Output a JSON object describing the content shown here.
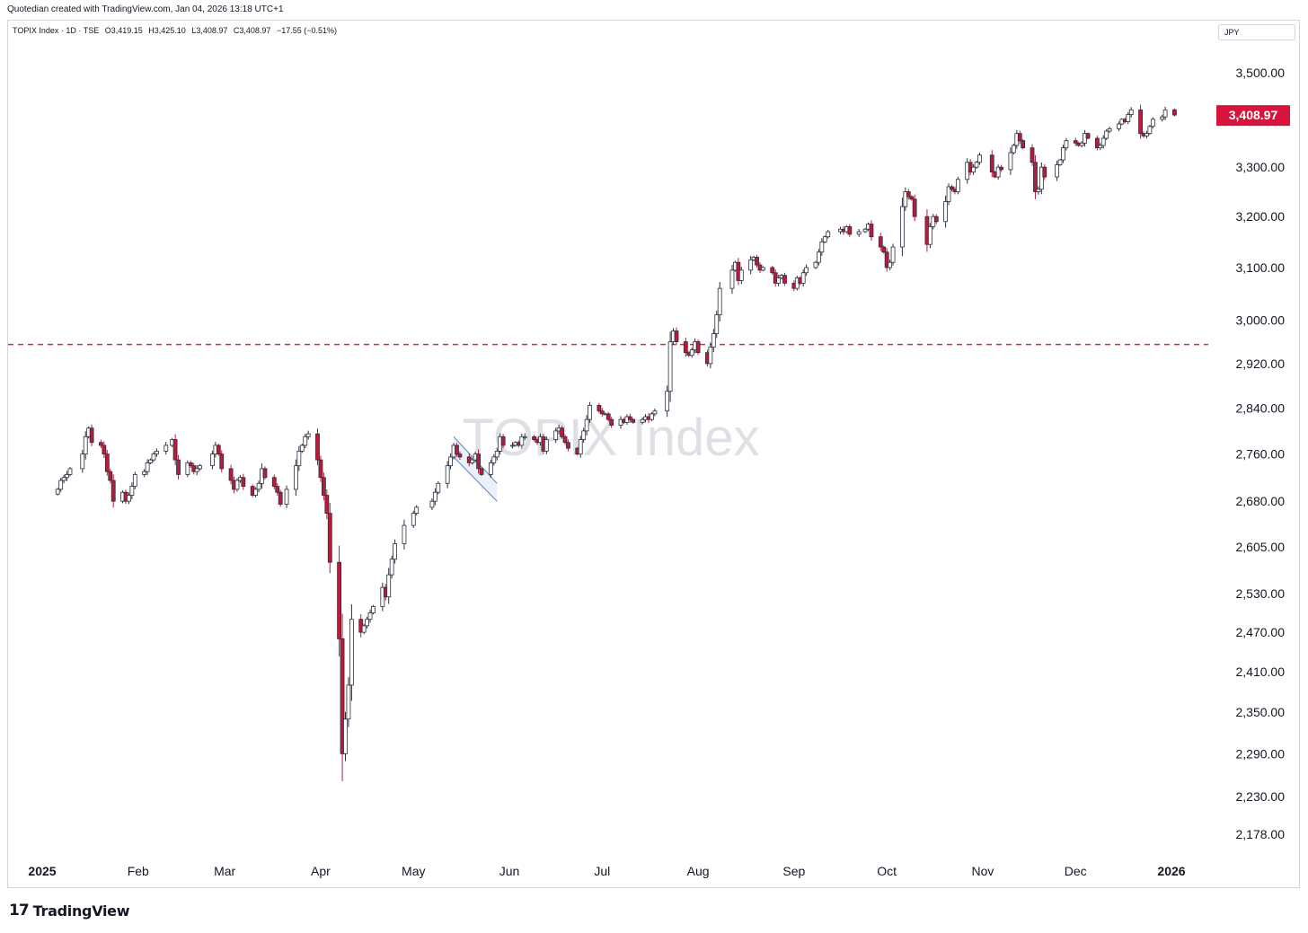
{
  "header": {
    "credit": "Quotedian created with TradingView.com, Jan 04, 2026 13:18 UTC+1"
  },
  "legend": {
    "symbol": "TOPIX Index · 1D · TSE",
    "open": "O3,419.15",
    "high": "H3,425.10",
    "low": "L3,408.97",
    "close": "C3,408.97",
    "change": "−17.55 (−0.51%)"
  },
  "currency": "JPY",
  "watermark": "TOPIX Index",
  "footer": {
    "brand": "TradingView",
    "logo_mark": "17"
  },
  "colors": {
    "bear": "#b71c3c",
    "bull": "#ffffff",
    "outline": "#2a2e39",
    "last_price_bg": "#d9143c",
    "reference_line": "#d32f2f",
    "channel": "#5b7fbf"
  },
  "chart_data": {
    "type": "candlestick",
    "title": "TOPIX Index",
    "y_axis_ticks": [
      "3,500.00",
      "3,300.00",
      "3,200.00",
      "3,100.00",
      "3,000.00",
      "2,920.00",
      "2,840.00",
      "2,760.00",
      "2,680.00",
      "2,605.00",
      "2,530.00",
      "2,470.00",
      "2,410.00",
      "2,350.00",
      "2,290.00",
      "2,230.00",
      "2,178.00"
    ],
    "y_tick_values": [
      3500,
      3300,
      3200,
      3100,
      3000,
      2920,
      2840,
      2760,
      2680,
      2605,
      2530,
      2470,
      2410,
      2350,
      2290,
      2230,
      2178
    ],
    "scale": "log",
    "x_axis_ticks": [
      "2025",
      "Feb",
      "Mar",
      "Apr",
      "May",
      "Jun",
      "Jul",
      "Aug",
      "Sep",
      "Oct",
      "Nov",
      "Dec",
      "2026"
    ],
    "x_tick_dates": [
      "2025-01-01",
      "2025-02-01",
      "2025-03-01",
      "2025-04-01",
      "2025-05-01",
      "2025-06-01",
      "2025-07-01",
      "2025-08-01",
      "2025-09-01",
      "2025-10-01",
      "2025-11-01",
      "2025-12-01",
      "2026-01-01"
    ],
    "last_price": "3,408.97",
    "last_price_value": 3408.97,
    "reference_line_value": 2955,
    "channel": {
      "upper": [
        [
          "2025-05-14",
          2790
        ],
        [
          "2025-05-28",
          2710
        ]
      ],
      "lower": [
        [
          "2025-05-14",
          2755
        ],
        [
          "2025-05-28",
          2680
        ]
      ]
    },
    "ohlc_close": [
      [
        "2025-01-06",
        2700
      ],
      [
        "2025-01-07",
        2715
      ],
      [
        "2025-01-08",
        2720
      ],
      [
        "2025-01-09",
        2725
      ],
      [
        "2025-01-10",
        2735
      ],
      [
        "2025-01-14",
        2760
      ],
      [
        "2025-01-15",
        2790
      ],
      [
        "2025-01-16",
        2805
      ],
      [
        "2025-01-17",
        2780
      ],
      [
        "2025-01-20",
        2775
      ],
      [
        "2025-01-21",
        2760
      ],
      [
        "2025-01-22",
        2730
      ],
      [
        "2025-01-23",
        2715
      ],
      [
        "2025-01-24",
        2680
      ],
      [
        "2025-01-27",
        2695
      ],
      [
        "2025-01-28",
        2680
      ],
      [
        "2025-01-29",
        2690
      ],
      [
        "2025-01-30",
        2705
      ],
      [
        "2025-01-31",
        2725
      ],
      [
        "2025-02-03",
        2730
      ],
      [
        "2025-02-04",
        2745
      ],
      [
        "2025-02-05",
        2750
      ],
      [
        "2025-02-06",
        2760
      ],
      [
        "2025-02-07",
        2765
      ],
      [
        "2025-02-10",
        2775
      ],
      [
        "2025-02-12",
        2785
      ],
      [
        "2025-02-13",
        2750
      ],
      [
        "2025-02-14",
        2725
      ],
      [
        "2025-02-17",
        2745
      ],
      [
        "2025-02-18",
        2740
      ],
      [
        "2025-02-19",
        2730
      ],
      [
        "2025-02-20",
        2735
      ],
      [
        "2025-02-21",
        2740
      ],
      [
        "2025-02-25",
        2760
      ],
      [
        "2025-02-26",
        2775
      ],
      [
        "2025-02-27",
        2760
      ],
      [
        "2025-02-28",
        2735
      ],
      [
        "2025-03-03",
        2715
      ],
      [
        "2025-03-04",
        2700
      ],
      [
        "2025-03-05",
        2715
      ],
      [
        "2025-03-06",
        2720
      ],
      [
        "2025-03-07",
        2705
      ],
      [
        "2025-03-10",
        2690
      ],
      [
        "2025-03-11",
        2700
      ],
      [
        "2025-03-12",
        2710
      ],
      [
        "2025-03-13",
        2735
      ],
      [
        "2025-03-14",
        2720
      ],
      [
        "2025-03-17",
        2705
      ],
      [
        "2025-03-18",
        2695
      ],
      [
        "2025-03-19",
        2675
      ],
      [
        "2025-03-21",
        2700
      ],
      [
        "2025-03-24",
        2740
      ],
      [
        "2025-03-25",
        2765
      ],
      [
        "2025-03-26",
        2775
      ],
      [
        "2025-03-27",
        2790
      ],
      [
        "2025-03-28",
        2795
      ],
      [
        "2025-03-31",
        2750
      ],
      [
        "2025-04-01",
        2720
      ],
      [
        "2025-04-02",
        2690
      ],
      [
        "2025-04-03",
        2660
      ],
      [
        "2025-04-04",
        2580
      ],
      [
        "2025-04-07",
        2460
      ],
      [
        "2025-04-08",
        2290
      ],
      [
        "2025-04-09",
        2340
      ],
      [
        "2025-04-10",
        2390
      ],
      [
        "2025-04-11",
        2490
      ],
      [
        "2025-04-14",
        2470
      ],
      [
        "2025-04-15",
        2480
      ],
      [
        "2025-04-16",
        2490
      ],
      [
        "2025-04-17",
        2500
      ],
      [
        "2025-04-18",
        2510
      ],
      [
        "2025-04-21",
        2540
      ],
      [
        "2025-04-22",
        2525
      ],
      [
        "2025-04-23",
        2560
      ],
      [
        "2025-04-24",
        2585
      ],
      [
        "2025-04-25",
        2610
      ],
      [
        "2025-04-28",
        2640
      ],
      [
        "2025-05-01",
        2660
      ],
      [
        "2025-05-02",
        2670
      ],
      [
        "2025-05-07",
        2680
      ],
      [
        "2025-05-08",
        2695
      ],
      [
        "2025-05-09",
        2710
      ],
      [
        "2025-05-12",
        2740
      ],
      [
        "2025-05-13",
        2755
      ],
      [
        "2025-05-14",
        2775
      ],
      [
        "2025-05-15",
        2760
      ],
      [
        "2025-05-16",
        2755
      ],
      [
        "2025-05-19",
        2745
      ],
      [
        "2025-05-20",
        2750
      ],
      [
        "2025-05-21",
        2760
      ],
      [
        "2025-05-22",
        2735
      ],
      [
        "2025-05-23",
        2725
      ],
      [
        "2025-05-26",
        2745
      ],
      [
        "2025-05-27",
        2755
      ],
      [
        "2025-05-28",
        2765
      ],
      [
        "2025-05-29",
        2790
      ],
      [
        "2025-05-30",
        2775
      ],
      [
        "2025-06-02",
        2775
      ],
      [
        "2025-06-03",
        2780
      ],
      [
        "2025-06-04",
        2775
      ],
      [
        "2025-06-05",
        2790
      ],
      [
        "2025-06-06",
        2790
      ],
      [
        "2025-06-09",
        2785
      ],
      [
        "2025-06-10",
        2780
      ],
      [
        "2025-06-11",
        2790
      ],
      [
        "2025-06-12",
        2765
      ],
      [
        "2025-06-13",
        2785
      ],
      [
        "2025-06-16",
        2800
      ],
      [
        "2025-06-17",
        2805
      ],
      [
        "2025-06-18",
        2790
      ],
      [
        "2025-06-19",
        2780
      ],
      [
        "2025-06-20",
        2770
      ],
      [
        "2025-06-23",
        2760
      ],
      [
        "2025-06-24",
        2785
      ],
      [
        "2025-06-25",
        2800
      ],
      [
        "2025-06-26",
        2820
      ],
      [
        "2025-06-27",
        2845
      ],
      [
        "2025-06-30",
        2835
      ],
      [
        "2025-07-01",
        2830
      ],
      [
        "2025-07-02",
        2830
      ],
      [
        "2025-07-03",
        2820
      ],
      [
        "2025-07-04",
        2810
      ],
      [
        "2025-07-07",
        2820
      ],
      [
        "2025-07-08",
        2815
      ],
      [
        "2025-07-09",
        2825
      ],
      [
        "2025-07-10",
        2820
      ],
      [
        "2025-07-11",
        2815
      ],
      [
        "2025-07-14",
        2820
      ],
      [
        "2025-07-15",
        2825
      ],
      [
        "2025-07-16",
        2820
      ],
      [
        "2025-07-17",
        2830
      ],
      [
        "2025-07-18",
        2835
      ],
      [
        "2025-07-22",
        2870
      ],
      [
        "2025-07-23",
        2960
      ],
      [
        "2025-07-24",
        2980
      ],
      [
        "2025-07-25",
        2960
      ],
      [
        "2025-07-28",
        2940
      ],
      [
        "2025-07-29",
        2935
      ],
      [
        "2025-07-30",
        2945
      ],
      [
        "2025-07-31",
        2960
      ],
      [
        "2025-08-01",
        2940
      ],
      [
        "2025-08-04",
        2920
      ],
      [
        "2025-08-05",
        2950
      ],
      [
        "2025-08-06",
        2975
      ],
      [
        "2025-08-07",
        3010
      ],
      [
        "2025-08-08",
        3060
      ],
      [
        "2025-08-12",
        3095
      ],
      [
        "2025-08-13",
        3110
      ],
      [
        "2025-08-14",
        3075
      ],
      [
        "2025-08-15",
        3095
      ],
      [
        "2025-08-18",
        3115
      ],
      [
        "2025-08-19",
        3120
      ],
      [
        "2025-08-20",
        3105
      ],
      [
        "2025-08-21",
        3095
      ],
      [
        "2025-08-22",
        3100
      ],
      [
        "2025-08-25",
        3090
      ],
      [
        "2025-08-26",
        3070
      ],
      [
        "2025-08-27",
        3080
      ],
      [
        "2025-08-28",
        3085
      ],
      [
        "2025-08-29",
        3070
      ],
      [
        "2025-09-01",
        3060
      ],
      [
        "2025-09-02",
        3080
      ],
      [
        "2025-09-03",
        3070
      ],
      [
        "2025-09-04",
        3090
      ],
      [
        "2025-09-05",
        3100
      ],
      [
        "2025-09-08",
        3110
      ],
      [
        "2025-09-09",
        3130
      ],
      [
        "2025-09-10",
        3150
      ],
      [
        "2025-09-11",
        3160
      ],
      [
        "2025-09-12",
        3170
      ],
      [
        "2025-09-16",
        3175
      ],
      [
        "2025-09-17",
        3170
      ],
      [
        "2025-09-18",
        3180
      ],
      [
        "2025-09-19",
        3165
      ],
      [
        "2025-09-22",
        3170
      ],
      [
        "2025-09-24",
        3175
      ],
      [
        "2025-09-25",
        3185
      ],
      [
        "2025-09-26",
        3160
      ],
      [
        "2025-09-29",
        3140
      ],
      [
        "2025-09-30",
        3130
      ],
      [
        "2025-10-01",
        3100
      ],
      [
        "2025-10-02",
        3110
      ],
      [
        "2025-10-03",
        3140
      ],
      [
        "2025-10-06",
        3220
      ],
      [
        "2025-10-07",
        3250
      ],
      [
        "2025-10-08",
        3240
      ],
      [
        "2025-10-09",
        3235
      ],
      [
        "2025-10-10",
        3200
      ],
      [
        "2025-10-14",
        3145
      ],
      [
        "2025-10-15",
        3180
      ],
      [
        "2025-10-16",
        3200
      ],
      [
        "2025-10-17",
        3190
      ],
      [
        "2025-10-20",
        3230
      ],
      [
        "2025-10-21",
        3260
      ],
      [
        "2025-10-22",
        3255
      ],
      [
        "2025-10-23",
        3250
      ],
      [
        "2025-10-24",
        3275
      ],
      [
        "2025-10-27",
        3310
      ],
      [
        "2025-10-28",
        3290
      ],
      [
        "2025-10-29",
        3300
      ],
      [
        "2025-10-30",
        3310
      ],
      [
        "2025-10-31",
        3325
      ],
      [
        "2025-11-04",
        3290
      ],
      [
        "2025-11-05",
        3280
      ],
      [
        "2025-11-06",
        3300
      ],
      [
        "2025-11-07",
        3295
      ],
      [
        "2025-11-10",
        3330
      ],
      [
        "2025-11-11",
        3345
      ],
      [
        "2025-11-12",
        3370
      ],
      [
        "2025-11-13",
        3355
      ],
      [
        "2025-11-14",
        3340
      ],
      [
        "2025-11-17",
        3310
      ],
      [
        "2025-11-18",
        3250
      ],
      [
        "2025-11-19",
        3255
      ],
      [
        "2025-11-20",
        3300
      ],
      [
        "2025-11-21",
        3280
      ],
      [
        "2025-11-25",
        3305
      ],
      [
        "2025-11-26",
        3315
      ],
      [
        "2025-11-27",
        3340
      ],
      [
        "2025-11-28",
        3355
      ],
      [
        "2025-12-01",
        3350
      ],
      [
        "2025-12-02",
        3345
      ],
      [
        "2025-12-03",
        3350
      ],
      [
        "2025-12-04",
        3370
      ],
      [
        "2025-12-05",
        3360
      ],
      [
        "2025-12-08",
        3340
      ],
      [
        "2025-12-09",
        3345
      ],
      [
        "2025-12-10",
        3360
      ],
      [
        "2025-12-11",
        3375
      ],
      [
        "2025-12-12",
        3380
      ],
      [
        "2025-12-15",
        3390
      ],
      [
        "2025-12-16",
        3400
      ],
      [
        "2025-12-17",
        3395
      ],
      [
        "2025-12-18",
        3410
      ],
      [
        "2025-12-19",
        3420
      ],
      [
        "2025-12-22",
        3370
      ],
      [
        "2025-12-23",
        3365
      ],
      [
        "2025-12-24",
        3370
      ],
      [
        "2025-12-25",
        3385
      ],
      [
        "2025-12-26",
        3400
      ],
      [
        "2025-12-29",
        3405
      ],
      [
        "2025-12-30",
        3420
      ],
      [
        "2026-01-02",
        3408.97
      ]
    ]
  }
}
